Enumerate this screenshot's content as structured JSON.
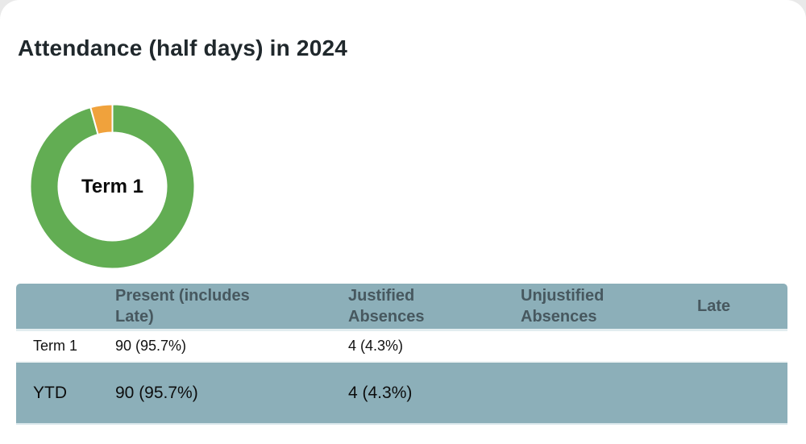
{
  "page": {
    "background_color": "#e9e9e9",
    "card_color": "#ffffff"
  },
  "header": {
    "title": "Attendance (half days) in 2024"
  },
  "chart_data": {
    "type": "donut",
    "title": "Attendance (half days) in 2024",
    "center_label": "Term 1",
    "segments": [
      {
        "name": "Present (includes Late)",
        "value": 95.7,
        "color": "#62ad53"
      },
      {
        "name": "Justified Absences",
        "value": 4.3,
        "color": "#f0a23c"
      }
    ],
    "start_at_top": true,
    "clockwise": true,
    "cutout_ratio": 0.66,
    "border_color": "#ffffff",
    "legend_position": "none"
  },
  "table": {
    "header_bg": "#8cafb9",
    "header_text_color": "#47585f",
    "highlight_row_bg": "#8cafb9",
    "headers": [
      "",
      "Present (includes Late)",
      "Justified Absences",
      "Unjustified Absences",
      "Late"
    ],
    "rows": [
      {
        "label": "Term 1",
        "present": "90 (95.7%)",
        "justified": "4 (4.3%)",
        "unjustified": "",
        "late": ""
      },
      {
        "label": "YTD",
        "present": "90 (95.7%)",
        "justified": "4 (4.3%)",
        "unjustified": "",
        "late": ""
      }
    ]
  }
}
